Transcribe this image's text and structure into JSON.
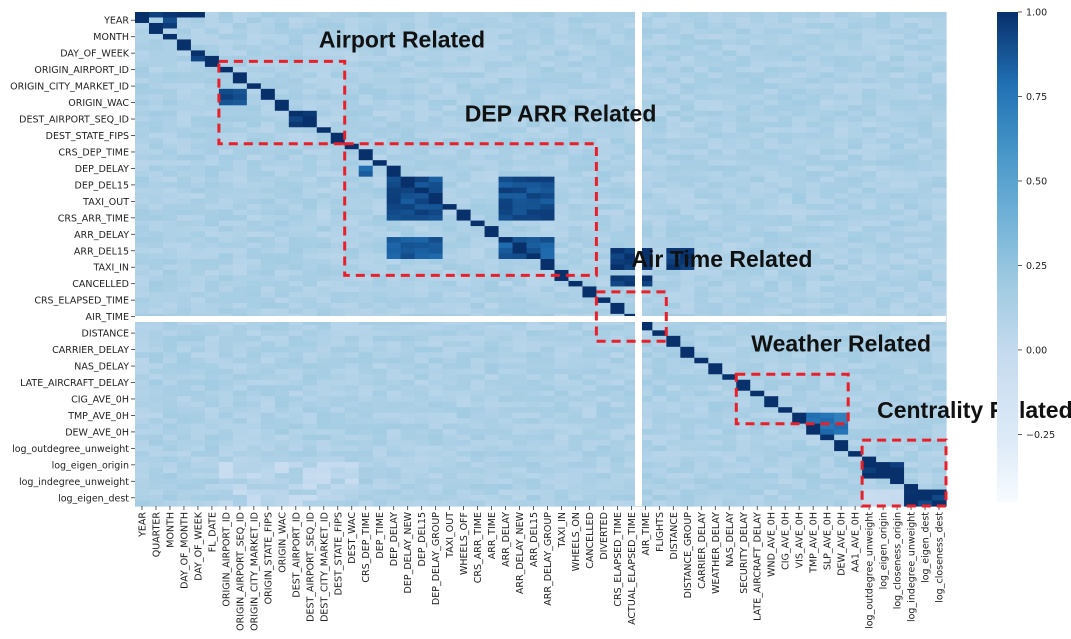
{
  "chart_data": {
    "type": "heatmap",
    "title": "",
    "variables_y": [
      "YEAR",
      "MONTH",
      "DAY_OF_WEEK",
      "ORIGIN_AIRPORT_ID",
      "ORIGIN_CITY_MARKET_ID",
      "ORIGIN_WAC",
      "DEST_AIRPORT_SEQ_ID",
      "DEST_STATE_FIPS",
      "CRS_DEP_TIME",
      "DEP_DELAY",
      "DEP_DEL15",
      "TAXI_OUT",
      "CRS_ARR_TIME",
      "ARR_DELAY",
      "ARR_DEL15",
      "TAXI_IN",
      "CANCELLED",
      "CRS_ELAPSED_TIME",
      "AIR_TIME",
      "DISTANCE",
      "CARRIER_DELAY",
      "NAS_DELAY",
      "LATE_AIRCRAFT_DELAY",
      "CIG_AVE_0H",
      "TMP_AVE_0H",
      "DEW_AVE_0H",
      "log_outdegree_unweight",
      "log_eigen_origin",
      "log_indegree_unweight",
      "log_eigen_dest"
    ],
    "variables_x": [
      "YEAR",
      "QUARTER",
      "MONTH",
      "DAY_OF_MONTH",
      "DAY_OF_WEEK",
      "FL_DATE",
      "ORIGIN_AIRPORT_ID",
      "ORIGIN_AIRPORT_SEQ_ID",
      "ORIGIN_CITY_MARKET_ID",
      "ORIGIN_STATE_FIPS",
      "ORIGIN_WAC",
      "DEST_AIRPORT_ID",
      "DEST_AIRPORT_SEQ_ID",
      "DEST_CITY_MARKET_ID",
      "DEST_STATE_FIPS",
      "DEST_WAC",
      "CRS_DEP_TIME",
      "DEP_TIME",
      "DEP_DELAY",
      "DEP_DELAY_NEW",
      "DEP_DEL15",
      "DEP_DELAY_GROUP",
      "TAXI_OUT",
      "WHEELS_OFF",
      "CRS_ARR_TIME",
      "ARR_TIME",
      "ARR_DELAY",
      "ARR_DELAY_NEW",
      "ARR_DEL15",
      "ARR_DELAY_GROUP",
      "TAXI_IN",
      "WHEELS_ON",
      "CANCELLED",
      "DIVERTED",
      "CRS_ELAPSED_TIME",
      "ACTUAL_ELAPSED_TIME",
      "AIR_TIME",
      "FLIGHTS",
      "DISTANCE",
      "DISTANCE_GROUP",
      "CARRIER_DELAY",
      "WEATHER_DELAY",
      "NAS_DELAY",
      "SECURITY_DELAY",
      "LATE_AIRCRAFT_DELAY",
      "WND_AVE_0H",
      "CIG_AVE_0H",
      "VIS_AVE_0H",
      "TMP_AVE_0H",
      "SLP_AVE_0H",
      "DEW_AVE_0H",
      "AA1_AVE_0H",
      "log_outdegree_unweight",
      "log_eigen_origin",
      "log_closeness_origin",
      "log_indegree_unweight",
      "log_eigen_dest",
      "log_closeness_dest"
    ],
    "high_blocks": [
      {
        "rows": [
          0,
          1
        ],
        "cols": [
          0,
          5
        ],
        "value": 0.98
      },
      {
        "rows": [
          1,
          3
        ],
        "cols": [
          2,
          3
        ],
        "value": 0.95
      },
      {
        "rows": [
          7,
          9
        ],
        "cols": [
          4,
          5
        ],
        "value": 0.95
      },
      {
        "rows": [
          14,
          17
        ],
        "cols": [
          6,
          8
        ],
        "value": 0.92
      },
      {
        "rows": [
          18,
          21
        ],
        "cols": [
          11,
          13
        ],
        "value": 0.92
      },
      {
        "rows": [
          28,
          30
        ],
        "cols": [
          16,
          17
        ],
        "value": 0.85
      },
      {
        "rows": [
          30,
          38
        ],
        "cols": [
          18,
          22
        ],
        "value": 0.9
      },
      {
        "rows": [
          30,
          38
        ],
        "cols": [
          26,
          30
        ],
        "value": 0.9
      },
      {
        "rows": [
          41,
          45
        ],
        "cols": [
          18,
          22
        ],
        "value": 0.85
      },
      {
        "rows": [
          41,
          45
        ],
        "cols": [
          26,
          30
        ],
        "value": 0.85
      },
      {
        "rows": [
          43,
          47
        ],
        "cols": [
          34,
          37
        ],
        "value": 0.97
      },
      {
        "rows": [
          48,
          50
        ],
        "cols": [
          34,
          37
        ],
        "value": 0.97
      },
      {
        "rows": [
          43,
          47
        ],
        "cols": [
          38,
          40
        ],
        "value": 0.97
      },
      {
        "rows": [
          73,
          77
        ],
        "cols": [
          48,
          51
        ],
        "value": 0.75
      },
      {
        "rows": [
          82,
          85
        ],
        "cols": [
          52,
          55
        ],
        "value": 0.97
      },
      {
        "rows": [
          87,
          90
        ],
        "cols": [
          55,
          58
        ],
        "value": 0.97
      }
    ],
    "blank_row": 47,
    "blank_col": 37,
    "colorbar": {
      "min": -0.45,
      "max": 1.0,
      "ticks": [
        "1.00",
        "0.75",
        "0.50",
        "0.25",
        "0.00",
        "−0.25"
      ],
      "tick_values": [
        1.0,
        0.75,
        0.5,
        0.25,
        0.0,
        -0.25
      ],
      "colormap": "Blues"
    },
    "annotations": [
      {
        "text": "Airport Related",
        "row_range": [
          3,
          8
        ],
        "col_range": [
          6,
          15
        ]
      },
      {
        "text": "DEP ARR Related",
        "row_range": [
          8,
          16
        ],
        "col_range": [
          15,
          33
        ]
      },
      {
        "text": "Air Time Related",
        "row_range": [
          17,
          20
        ],
        "col_range": [
          33,
          38
        ]
      },
      {
        "text": "Weather Related",
        "row_range": [
          22,
          25
        ],
        "col_range": [
          43,
          51
        ]
      },
      {
        "text": "Centrality Related",
        "row_range": [
          26,
          30
        ],
        "col_range": [
          52,
          58
        ]
      }
    ],
    "annotation_box_color": "#e8202a"
  }
}
